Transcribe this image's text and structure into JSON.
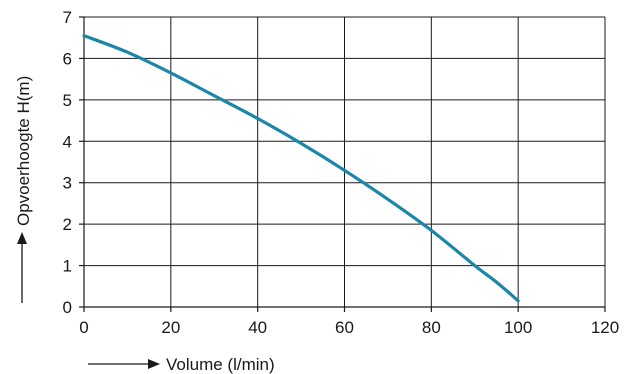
{
  "chart_data": {
    "type": "line",
    "xlabel": "Volume (l/min)",
    "ylabel": "Opvoerhoogte H(m)",
    "xlim": [
      0,
      120
    ],
    "ylim": [
      0,
      7
    ],
    "x_ticks": [
      "0",
      "20",
      "40",
      "60",
      "80",
      "100",
      "120"
    ],
    "y_ticks": [
      "0",
      "1",
      "2",
      "3",
      "4",
      "5",
      "6",
      "7"
    ],
    "grid": true,
    "series": [
      {
        "color": "#1a86a8",
        "x": [
          0,
          10,
          20,
          30,
          40,
          50,
          60,
          70,
          80,
          90,
          95,
          100
        ],
        "y": [
          6.55,
          6.15,
          5.65,
          5.1,
          4.55,
          3.95,
          3.3,
          2.6,
          1.85,
          1.0,
          0.6,
          0.15
        ]
      }
    ]
  }
}
